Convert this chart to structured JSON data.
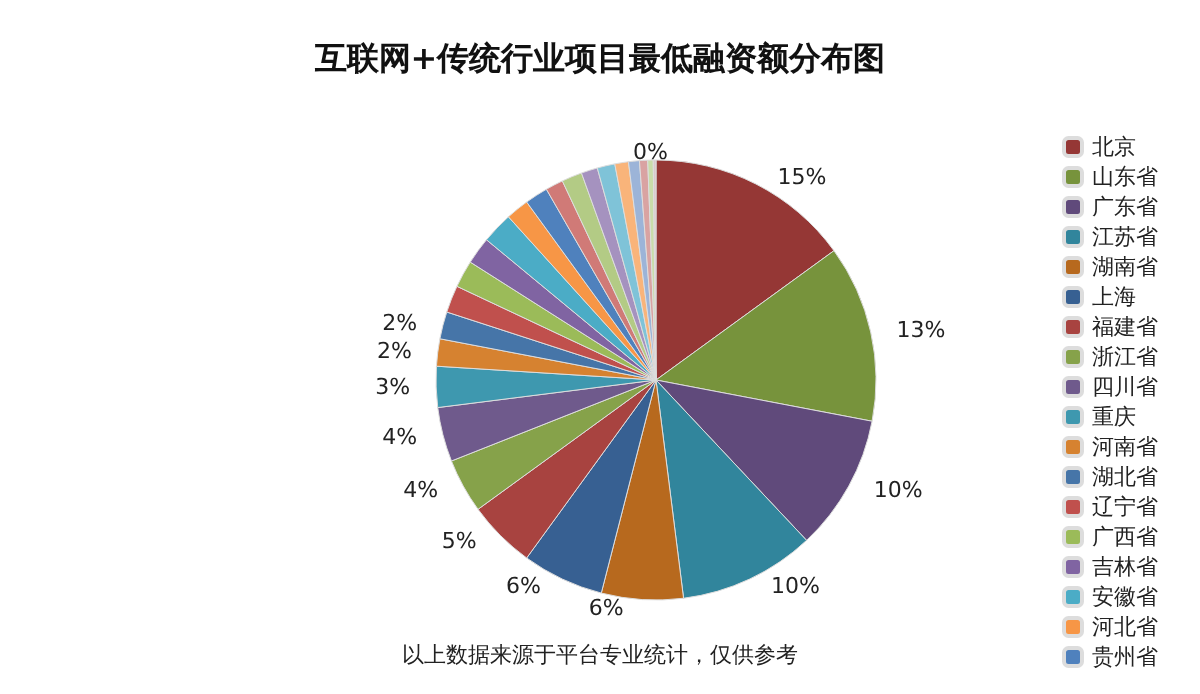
{
  "chart_data": {
    "type": "pie",
    "title": "互联网+传统行业项目最低融资额分布图",
    "categories": [
      "北京",
      "山东省",
      "广东省",
      "江苏省",
      "湖南省",
      "上海",
      "福建省",
      "浙江省",
      "四川省",
      "重庆",
      "河南省",
      "湖北省",
      "辽宁省",
      "广西省",
      "吉林省",
      "安徽省",
      "河北省",
      "贵州省",
      null,
      null,
      null,
      null,
      null,
      null,
      null,
      null,
      null
    ],
    "values": [
      15,
      13,
      10,
      10,
      6,
      6,
      5,
      4,
      4,
      3,
      2,
      2,
      2,
      2,
      2,
      2.3,
      1.7,
      1.7,
      1.3,
      1.5,
      1.2,
      1.3,
      1,
      0.8,
      0.6,
      0.4,
      0.2
    ],
    "value_labels": [
      "15%",
      "13%",
      "10%",
      "10%",
      "6%",
      "6%",
      "5%",
      "4%",
      "4%",
      "3%",
      "2%",
      "2%",
      null,
      null,
      null,
      null,
      null,
      null,
      null,
      null,
      null,
      null,
      null,
      null,
      null,
      null,
      "0%"
    ],
    "colors": [
      "#953735",
      "#77933c",
      "#604a7b",
      "#31859c",
      "#b7691e",
      "#376092",
      "#a84340",
      "#86a24a",
      "#6f5a8c",
      "#3e98af",
      "#d68230",
      "#4675a8",
      "#c0504d",
      "#9bbb59",
      "#8064a2",
      "#4bacc6",
      "#f79646",
      "#4f81bd",
      "#d07a77",
      "#b3cb85",
      "#a592bf",
      "#7fc3d8",
      "#f9b47a",
      "#9cb4d8",
      "#d9a3a2",
      "#c9dcaa",
      "#d9c9cc"
    ],
    "legend": "right",
    "annotations": [
      "以上数据来源于平台专业统计，仅供参考"
    ]
  }
}
